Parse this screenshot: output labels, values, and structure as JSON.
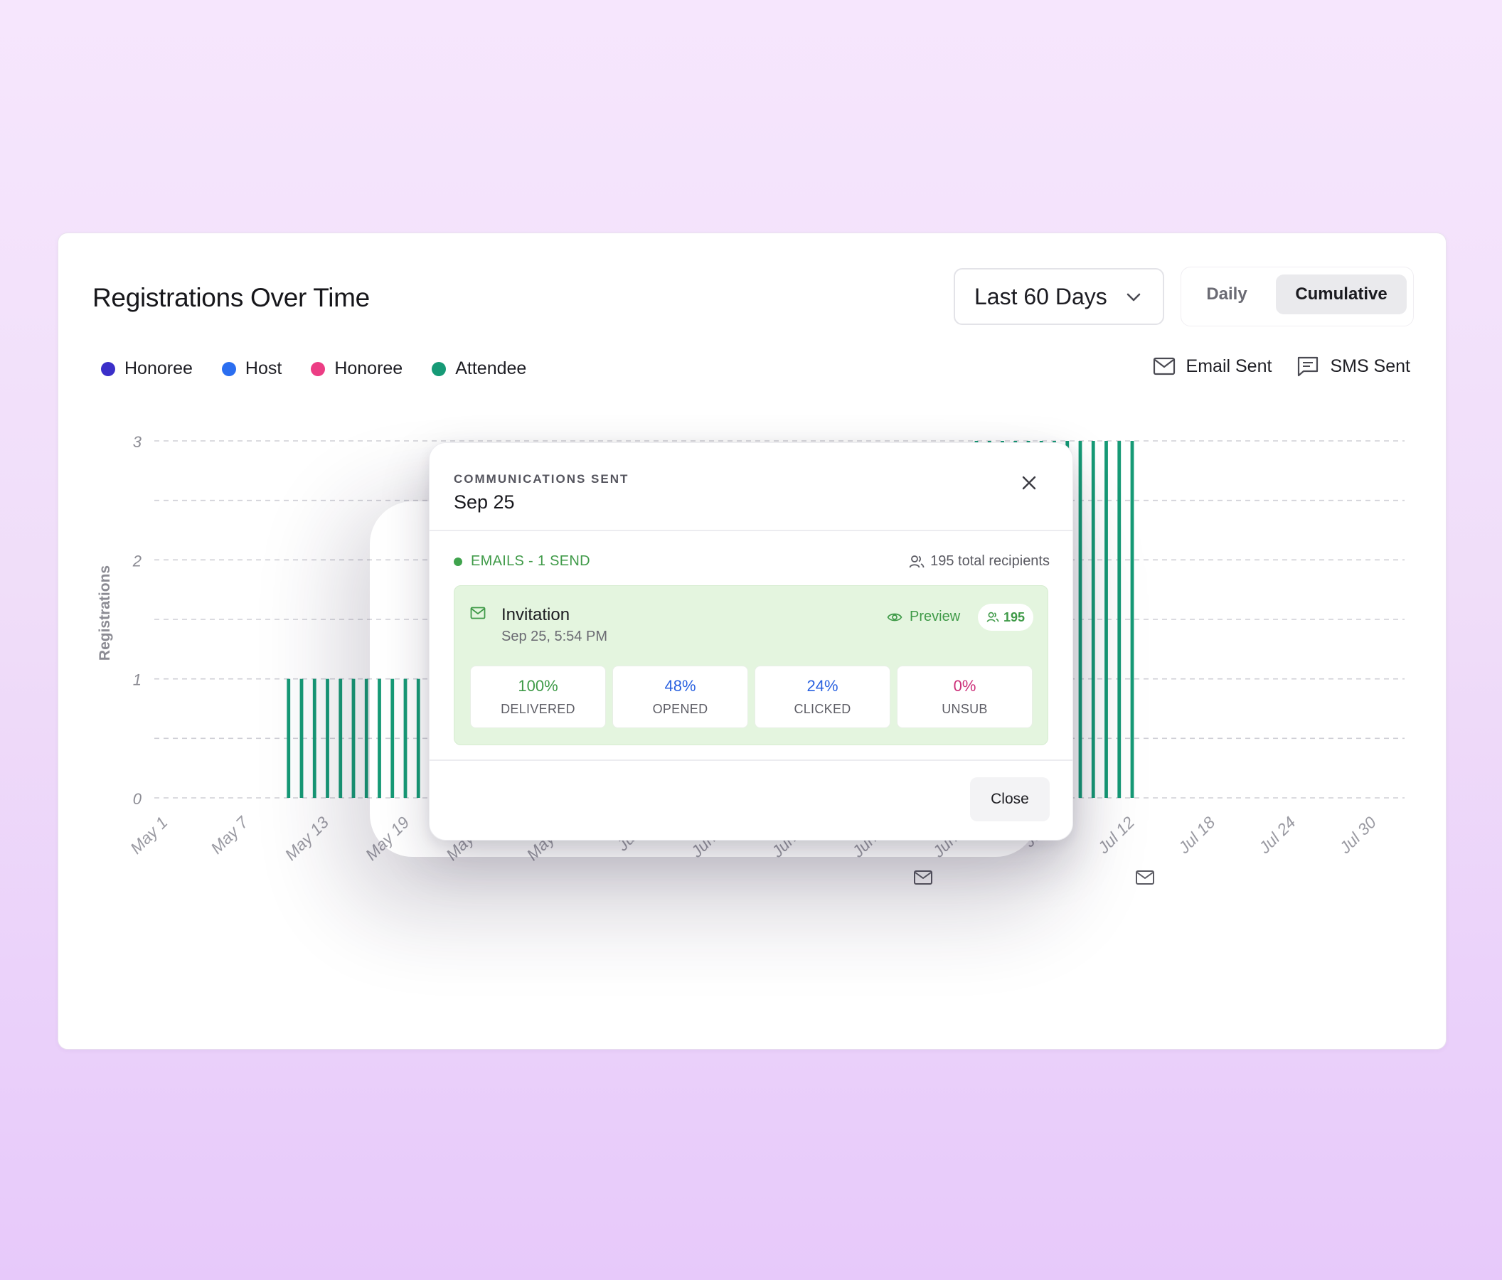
{
  "card": {
    "title": "Registrations Over Time",
    "range_select": "Last 60 Days",
    "toggle": {
      "daily": "Daily",
      "cumulative": "Cumulative",
      "selected": "Cumulative"
    }
  },
  "legend": [
    {
      "label": "Honoree",
      "color": "#3b2fc9"
    },
    {
      "label": "Host",
      "color": "#2b6ef0"
    },
    {
      "label": "Honoree",
      "color": "#ec3d84"
    },
    {
      "label": "Attendee",
      "color": "#169a76"
    }
  ],
  "legend_right": {
    "email": "Email Sent",
    "sms": "SMS Sent"
  },
  "chart_data": {
    "type": "bar",
    "ylabel": "Registrations",
    "ylim": [
      0,
      3
    ],
    "yticks": [
      "0",
      "1",
      "2",
      "3"
    ],
    "xticks": [
      "May 1",
      "May 7",
      "May 13",
      "May 19",
      "May 25",
      "May 31",
      "Jun 6",
      "Jun 12",
      "Jun 18",
      "Jun 24",
      "Jun 30",
      "Jul 6",
      "Jul 12",
      "Jul 18",
      "Jul 24",
      "Jul 30"
    ],
    "series": [
      {
        "name": "Attendee",
        "color": "#169a76",
        "values": [
          0,
          0,
          0,
          0,
          0,
          0,
          0,
          0,
          0,
          0,
          0,
          1,
          1,
          1,
          1,
          1,
          1,
          1,
          1,
          1,
          1,
          1,
          1,
          1,
          1,
          1,
          1,
          1,
          1,
          1,
          1,
          1,
          1,
          1,
          1,
          1,
          1,
          1,
          1,
          1,
          1,
          1,
          1,
          1,
          1,
          1,
          1,
          1,
          1,
          1,
          1,
          2,
          2,
          2,
          2,
          2,
          2,
          2,
          2,
          2,
          2,
          2,
          2,
          2,
          3,
          3,
          3,
          3,
          3,
          3,
          3,
          3,
          3,
          3,
          3,
          3,
          3
        ]
      }
    ],
    "email_markers": [
      "Jul 3",
      "Jul 20"
    ]
  },
  "modal": {
    "eyebrow": "COMMUNICATIONS SENT",
    "date": "Sep 25",
    "emails_label": "EMAILS - 1 SEND",
    "recipients": "195 total recipients",
    "invitation": {
      "title": "Invitation",
      "time": "Sep 25, 5:54 PM",
      "preview": "Preview",
      "count": "195"
    },
    "stats": [
      {
        "value": "100%",
        "label": "DELIVERED",
        "color": "#3f9a48"
      },
      {
        "value": "48%",
        "label": "OPENED",
        "color": "#2b62e0"
      },
      {
        "value": "24%",
        "label": "CLICKED",
        "color": "#2b62e0"
      },
      {
        "value": "0%",
        "label": "UNSUB",
        "color": "#cc2f79"
      }
    ],
    "close": "Close"
  }
}
